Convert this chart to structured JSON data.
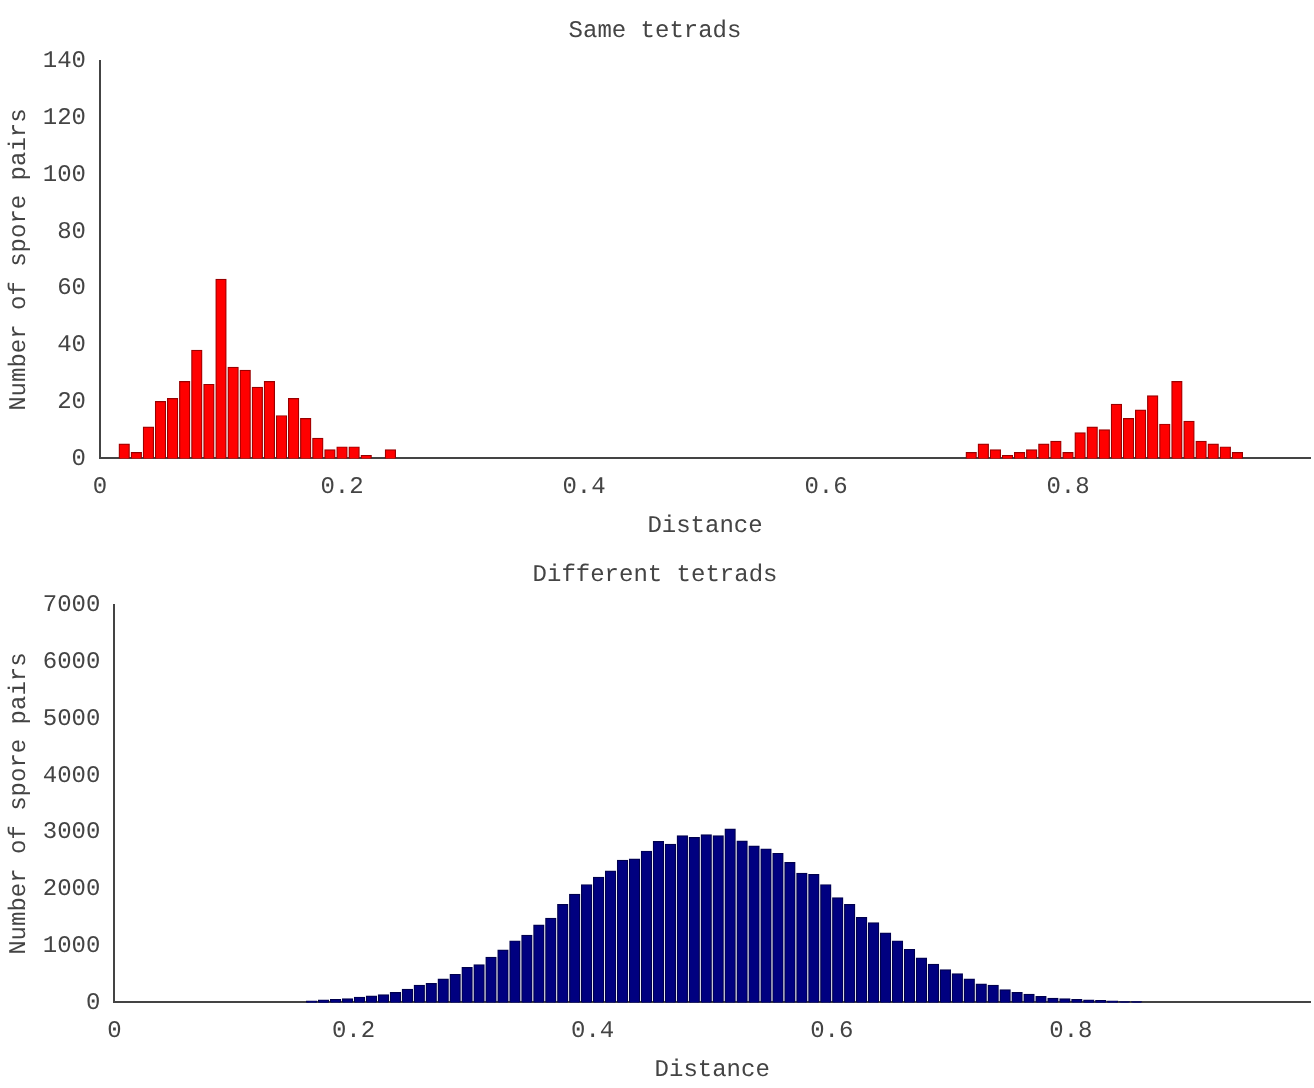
{
  "chart_data": [
    {
      "type": "bar",
      "title": "Same tetrads",
      "xlabel": "Distance",
      "ylabel": "Number of spore pairs",
      "color": "#ff0000",
      "x": [
        0.02,
        0.03,
        0.04,
        0.05,
        0.06,
        0.07,
        0.08,
        0.09,
        0.1,
        0.11,
        0.12,
        0.13,
        0.14,
        0.15,
        0.16,
        0.17,
        0.18,
        0.19,
        0.2,
        0.21,
        0.22,
        0.24,
        0.72,
        0.73,
        0.74,
        0.75,
        0.76,
        0.77,
        0.78,
        0.79,
        0.8,
        0.81,
        0.82,
        0.83,
        0.84,
        0.85,
        0.86,
        0.87,
        0.88,
        0.89,
        0.9,
        0.91,
        0.92,
        0.93,
        0.94
      ],
      "values": [
        5,
        2,
        11,
        20,
        21,
        27,
        38,
        26,
        63,
        32,
        31,
        25,
        27,
        15,
        21,
        14,
        7,
        3,
        4,
        4,
        1,
        3,
        2,
        5,
        3,
        1,
        2,
        3,
        5,
        6,
        2,
        9,
        11,
        10,
        19,
        14,
        17,
        22,
        12,
        27,
        13,
        6,
        5,
        4,
        2
      ],
      "xlim": [
        0,
        1
      ],
      "xticks": [
        0,
        0.2,
        0.4,
        0.6,
        0.8
      ],
      "ylim": [
        0,
        140
      ],
      "yticks": [
        0,
        20,
        40,
        60,
        80,
        100,
        120,
        140
      ]
    },
    {
      "type": "histogram",
      "title": "Different tetrads",
      "xlabel": "Distance",
      "ylabel": "Number of spore pairs",
      "color": "#000080",
      "bins": [
        0.16,
        0.17,
        0.18,
        0.19,
        0.2,
        0.21,
        0.22,
        0.23,
        0.24,
        0.25,
        0.26,
        0.27,
        0.28,
        0.29,
        0.3,
        0.31,
        0.32,
        0.33,
        0.34,
        0.35,
        0.36,
        0.37,
        0.38,
        0.39,
        0.4,
        0.41,
        0.42,
        0.43,
        0.44,
        0.45,
        0.46,
        0.47,
        0.48,
        0.49,
        0.5,
        0.51,
        0.52,
        0.53,
        0.54,
        0.55,
        0.56,
        0.57,
        0.58,
        0.59,
        0.6,
        0.61,
        0.62,
        0.63,
        0.64,
        0.65,
        0.66,
        0.67,
        0.68,
        0.69,
        0.7,
        0.71,
        0.72,
        0.73,
        0.74,
        0.75,
        0.76,
        0.77,
        0.78,
        0.79,
        0.8,
        0.81,
        0.82,
        0.83,
        0.84,
        0.85,
        0.86
      ],
      "values": [
        20,
        40,
        50,
        60,
        90,
        110,
        130,
        170,
        230,
        300,
        330,
        410,
        490,
        610,
        660,
        790,
        920,
        1080,
        1180,
        1360,
        1480,
        1720,
        1900,
        2070,
        2200,
        2310,
        2500,
        2520,
        2660,
        2830,
        2780,
        2930,
        2900,
        2950,
        2930,
        3050,
        2840,
        2750,
        2700,
        2620,
        2460,
        2270,
        2250,
        2070,
        1840,
        1720,
        1490,
        1400,
        1220,
        1080,
        930,
        780,
        670,
        570,
        500,
        410,
        320,
        300,
        220,
        170,
        140,
        100,
        70,
        60,
        50,
        40,
        30,
        20,
        10,
        10
      ],
      "xlim": [
        0,
        1
      ],
      "xticks": [
        0,
        0.2,
        0.4,
        0.6,
        0.8
      ],
      "ylim": [
        0,
        7000
      ],
      "yticks": [
        0,
        1000,
        2000,
        3000,
        4000,
        5000,
        6000,
        7000
      ]
    }
  ]
}
